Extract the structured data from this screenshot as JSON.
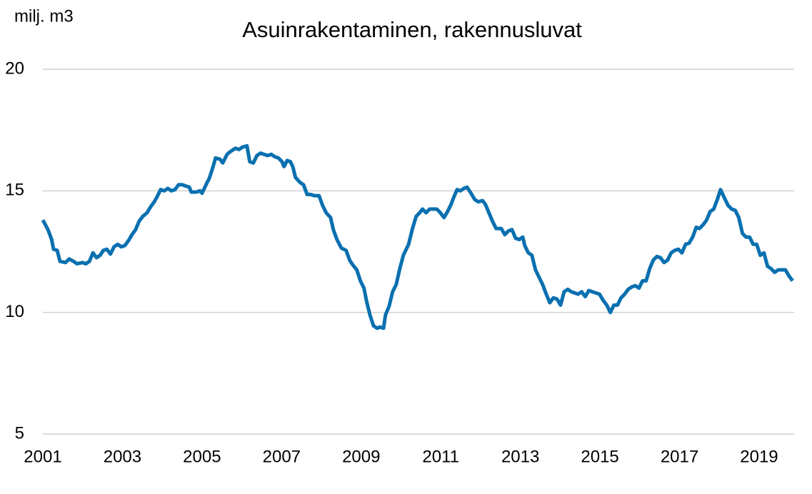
{
  "chart_data": {
    "type": "line",
    "title": "Asuinrakentaminen, rakennusluvat",
    "ylabel": "milj. m3",
    "x": [
      2001.0,
      2001.13,
      2001.22,
      2001.27,
      2001.36,
      2001.43,
      2001.57,
      2001.66,
      2001.77,
      2001.86,
      2001.99,
      2002.08,
      2002.17,
      2002.26,
      2002.35,
      2002.44,
      2002.52,
      2002.61,
      2002.7,
      2002.79,
      2002.88,
      2002.97,
      2003.06,
      2003.15,
      2003.24,
      2003.33,
      2003.42,
      2003.51,
      2003.62,
      2003.69,
      2003.8,
      2003.87,
      2003.96,
      2004.05,
      2004.14,
      2004.23,
      2004.32,
      2004.41,
      2004.5,
      2004.59,
      2004.68,
      2004.73,
      2004.86,
      2004.95,
      2005.0,
      2005.13,
      2005.18,
      2005.27,
      2005.34,
      2005.45,
      2005.52,
      2005.63,
      2005.7,
      2005.79,
      2005.84,
      2005.93,
      2006.02,
      2006.13,
      2006.2,
      2006.29,
      2006.38,
      2006.47,
      2006.56,
      2006.65,
      2006.74,
      2006.83,
      2006.92,
      2007.01,
      2007.06,
      2007.14,
      2007.22,
      2007.28,
      2007.35,
      2007.46,
      2007.55,
      2007.64,
      2007.73,
      2007.82,
      2007.94,
      2008.03,
      2008.12,
      2008.23,
      2008.3,
      2008.39,
      2008.5,
      2008.62,
      2008.71,
      2008.79,
      2008.89,
      2008.98,
      2009.07,
      2009.13,
      2009.22,
      2009.31,
      2009.4,
      2009.47,
      2009.56,
      2009.61,
      2009.7,
      2009.79,
      2009.88,
      2009.97,
      2010.06,
      2010.19,
      2010.29,
      2010.38,
      2010.47,
      2010.54,
      2010.63,
      2010.72,
      2010.81,
      2010.9,
      2010.99,
      2011.08,
      2011.17,
      2011.26,
      2011.33,
      2011.41,
      2011.49,
      2011.58,
      2011.66,
      2011.76,
      2011.85,
      2011.94,
      2012.05,
      2012.12,
      2012.21,
      2012.3,
      2012.39,
      2012.52,
      2012.61,
      2012.7,
      2012.79,
      2012.88,
      2012.97,
      2013.06,
      2013.11,
      2013.2,
      2013.29,
      2013.38,
      2013.47,
      2013.56,
      2013.65,
      2013.74,
      2013.83,
      2013.92,
      2014.01,
      2014.1,
      2014.19,
      2014.28,
      2014.37,
      2014.45,
      2014.54,
      2014.63,
      2014.72,
      2014.81,
      2014.9,
      2014.99,
      2015.08,
      2015.17,
      2015.26,
      2015.35,
      2015.44,
      2015.53,
      2015.62,
      2015.71,
      2015.8,
      2015.89,
      2015.98,
      2016.07,
      2016.16,
      2016.25,
      2016.34,
      2016.43,
      2016.52,
      2016.61,
      2016.7,
      2016.79,
      2016.88,
      2016.97,
      2017.06,
      2017.15,
      2017.24,
      2017.33,
      2017.42,
      2017.5,
      2017.59,
      2017.68,
      2017.77,
      2017.86,
      2017.95,
      2018.03,
      2018.13,
      2018.22,
      2018.31,
      2018.4,
      2018.49,
      2018.58,
      2018.67,
      2018.76,
      2018.85,
      2018.94,
      2019.03,
      2019.12,
      2019.21,
      2019.3,
      2019.39,
      2019.48,
      2019.57,
      2019.66,
      2019.75,
      2019.84
    ],
    "series": [
      {
        "name": "Asuinrakentaminen",
        "color": "#0a70b0",
        "values": [
          13.8,
          13.4,
          13.0,
          12.6,
          12.55,
          12.1,
          12.05,
          12.2,
          12.1,
          12.0,
          12.05,
          12.0,
          12.1,
          12.45,
          12.25,
          12.35,
          12.55,
          12.6,
          12.4,
          12.7,
          12.8,
          12.7,
          12.75,
          12.95,
          13.2,
          13.4,
          13.75,
          13.95,
          14.1,
          14.3,
          14.55,
          14.75,
          15.05,
          15.0,
          15.1,
          15.0,
          15.05,
          15.25,
          15.25,
          15.2,
          15.15,
          14.95,
          14.95,
          15.0,
          14.9,
          15.35,
          15.5,
          15.95,
          16.35,
          16.3,
          16.15,
          16.5,
          16.6,
          16.7,
          16.75,
          16.7,
          16.8,
          16.85,
          16.2,
          16.15,
          16.45,
          16.55,
          16.5,
          16.45,
          16.5,
          16.4,
          16.35,
          16.2,
          16.0,
          16.25,
          16.2,
          16.0,
          15.55,
          15.35,
          15.25,
          14.85,
          14.85,
          14.8,
          14.8,
          14.4,
          14.1,
          13.9,
          13.4,
          13.0,
          12.65,
          12.55,
          12.15,
          11.95,
          11.75,
          11.3,
          11.0,
          10.5,
          9.9,
          9.45,
          9.35,
          9.4,
          9.35,
          9.9,
          10.25,
          10.85,
          11.15,
          11.8,
          12.35,
          12.8,
          13.45,
          13.95,
          14.1,
          14.25,
          14.1,
          14.25,
          14.25,
          14.25,
          14.1,
          13.9,
          14.15,
          14.45,
          14.75,
          15.05,
          15.0,
          15.1,
          15.15,
          14.9,
          14.65,
          14.55,
          14.6,
          14.45,
          14.1,
          13.75,
          13.45,
          13.45,
          13.2,
          13.35,
          13.4,
          13.05,
          13.0,
          13.1,
          12.75,
          12.45,
          12.35,
          11.75,
          11.45,
          11.15,
          10.75,
          10.4,
          10.6,
          10.55,
          10.3,
          10.85,
          10.95,
          10.85,
          10.8,
          10.75,
          10.85,
          10.65,
          10.9,
          10.85,
          10.8,
          10.75,
          10.5,
          10.3,
          10.0,
          10.3,
          10.3,
          10.6,
          10.75,
          10.95,
          11.05,
          11.1,
          11.0,
          11.3,
          11.3,
          11.8,
          12.15,
          12.3,
          12.25,
          12.05,
          12.15,
          12.45,
          12.55,
          12.6,
          12.45,
          12.8,
          12.85,
          13.1,
          13.5,
          13.45,
          13.6,
          13.8,
          14.15,
          14.25,
          14.65,
          15.05,
          14.7,
          14.4,
          14.25,
          14.2,
          13.9,
          13.25,
          13.1,
          13.1,
          12.8,
          12.8,
          12.35,
          12.45,
          11.9,
          11.8,
          11.65,
          11.75,
          11.75,
          11.75,
          11.5,
          11.3
        ]
      }
    ],
    "xlim": [
      2001,
      2019.88
    ],
    "xticks": [
      2001,
      2003,
      2005,
      2007,
      2009,
      2011,
      2013,
      2015,
      2017,
      2019
    ],
    "ylim": [
      5,
      20
    ],
    "yticks": [
      5,
      10,
      15,
      20
    ],
    "grid": true
  }
}
